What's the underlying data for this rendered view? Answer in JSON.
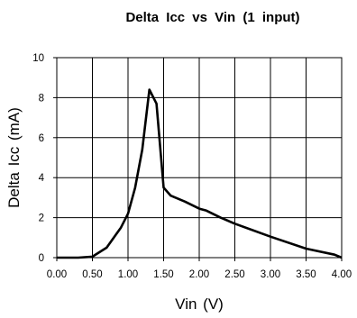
{
  "chart_data": {
    "type": "line",
    "title": "Delta Icc vs Vin (1 input)",
    "xlabel": "Vin (V)",
    "ylabel": "Delta Icc (mA)",
    "xlim": [
      0,
      4
    ],
    "ylim": [
      0,
      10
    ],
    "xticks": [
      "0.00",
      "0.50",
      "1.00",
      "1.50",
      "2.00",
      "2.50",
      "3.00",
      "3.50",
      "4.00"
    ],
    "yticks": [
      "0",
      "2",
      "4",
      "6",
      "8",
      "10"
    ],
    "grid": true,
    "series": [
      {
        "x": [
          0.0,
          0.3,
          0.5,
          0.7,
          0.9,
          1.0,
          1.1,
          1.2,
          1.3,
          1.4,
          1.5,
          1.6,
          1.8,
          2.0,
          2.1,
          2.3,
          2.5,
          3.0,
          3.5,
          3.9,
          4.0
        ],
        "y": [
          0.0,
          0.0,
          0.05,
          0.5,
          1.5,
          2.2,
          3.5,
          5.4,
          8.4,
          7.7,
          3.5,
          3.1,
          2.8,
          2.45,
          2.35,
          2.0,
          1.7,
          1.05,
          0.45,
          0.15,
          0.0
        ]
      }
    ]
  }
}
